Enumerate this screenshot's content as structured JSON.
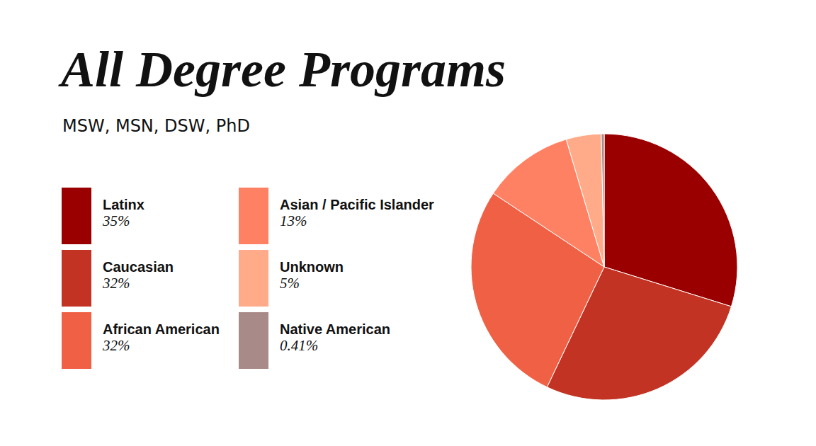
{
  "chart_data": {
    "type": "pie",
    "title": "All Degree Programs",
    "subtitle": "MSW, MSN, DSW, PhD",
    "categories": [
      "Latinx",
      "Caucasian",
      "African American",
      "Asian / Pacific Islander",
      "Unknown",
      "Native American"
    ],
    "values": [
      35,
      32,
      32,
      13,
      5,
      0.41
    ],
    "value_labels": [
      "35%",
      "32%",
      "32%",
      "13%",
      "5%",
      "0.41%"
    ],
    "colors": [
      "#9b0000",
      "#c23323",
      "#ef6044",
      "#ff8163",
      "#ffaa88",
      "#a88a88"
    ],
    "data_labels": false
  }
}
